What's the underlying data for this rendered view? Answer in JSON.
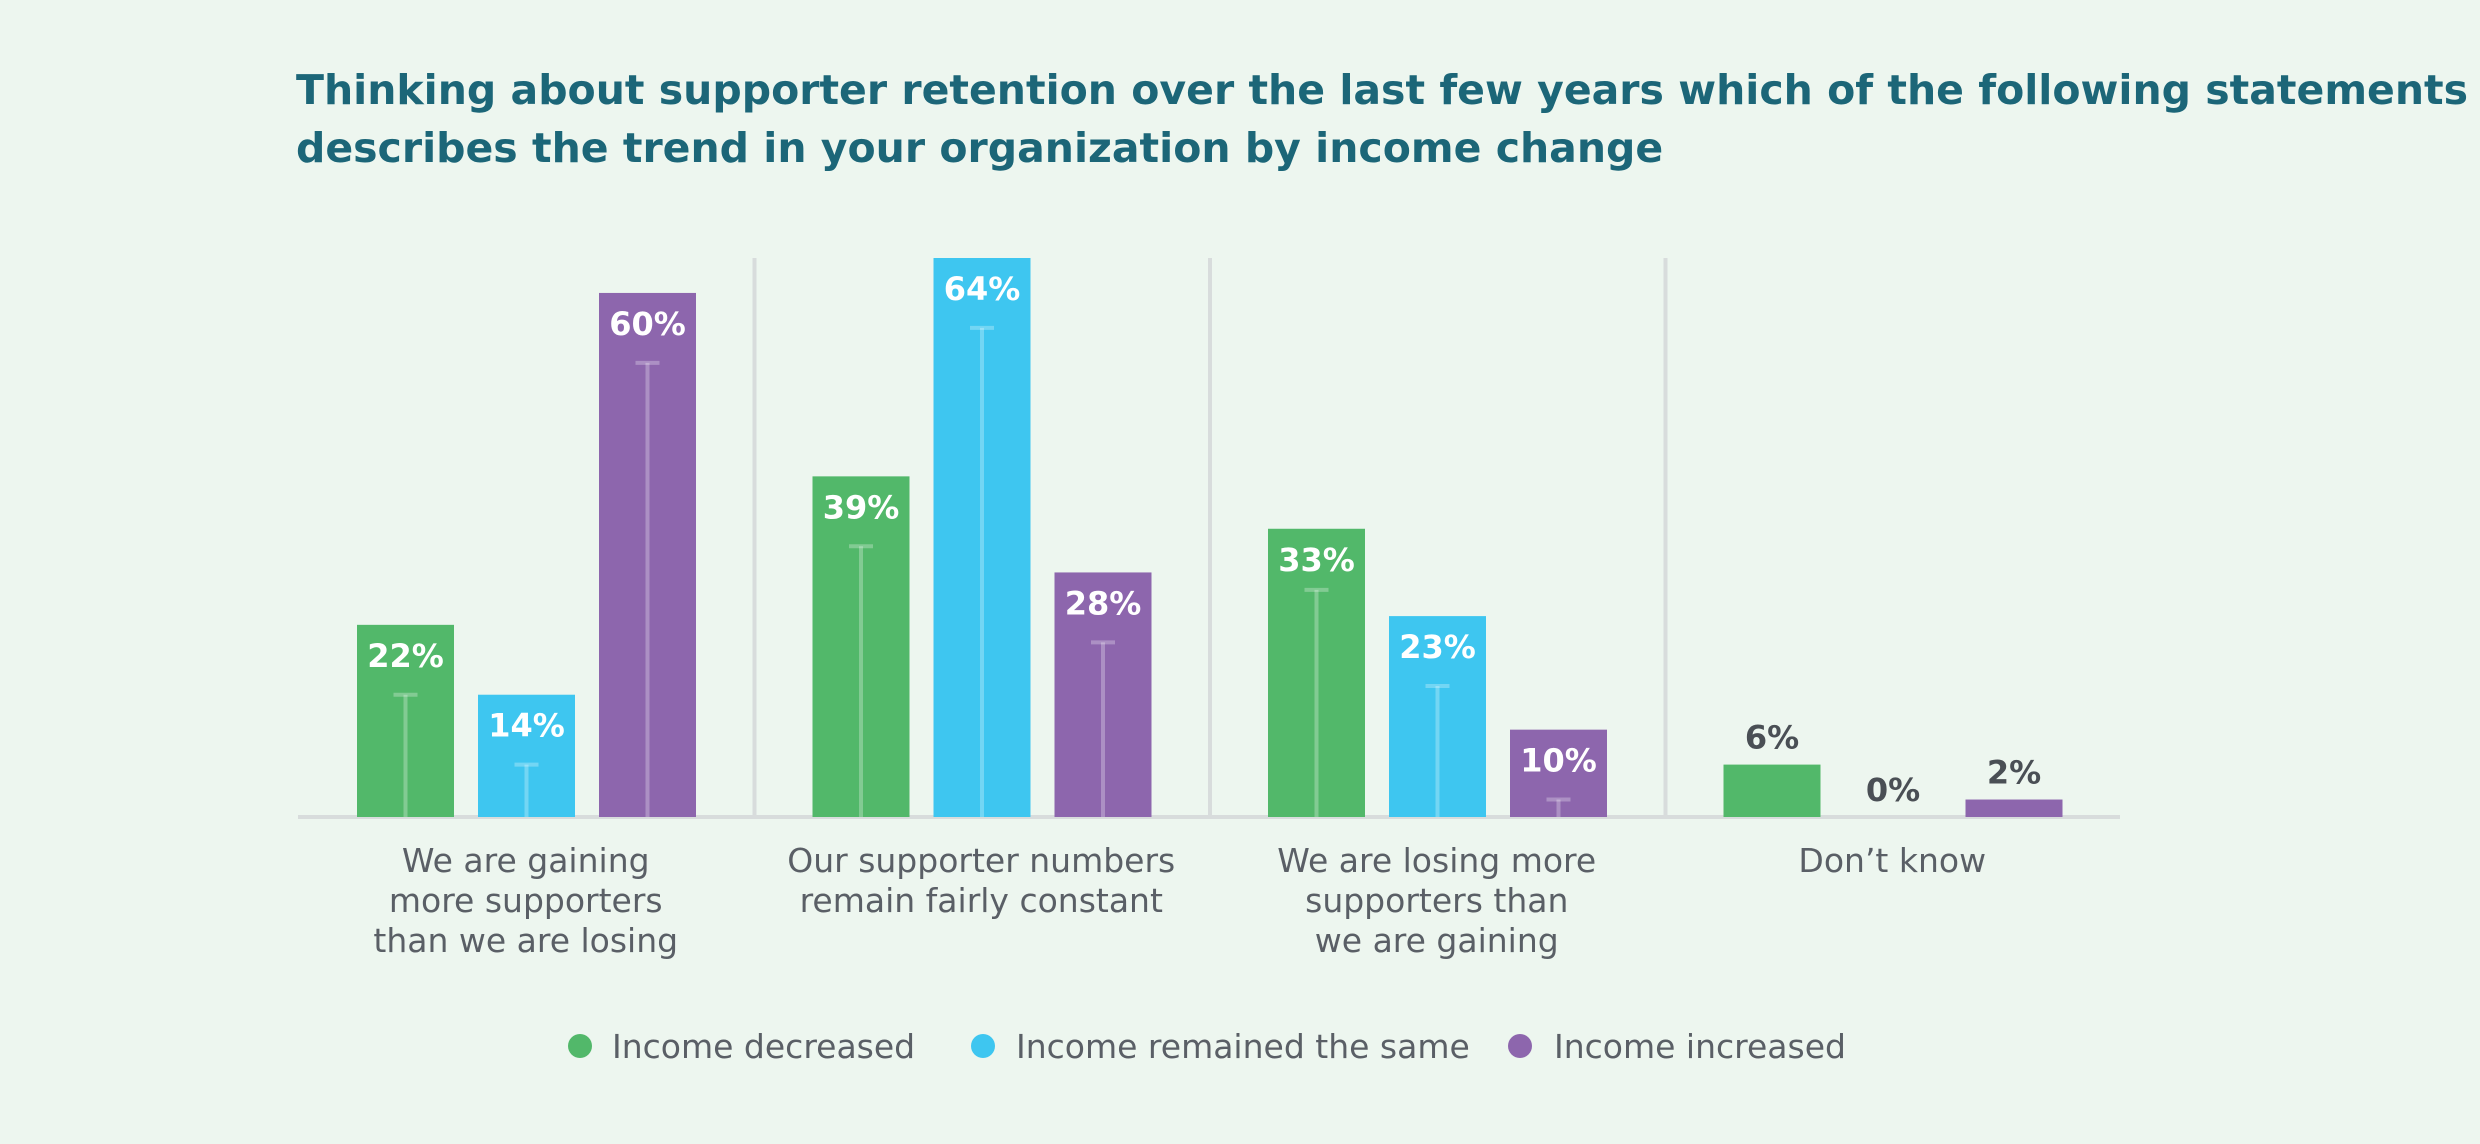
{
  "chart_data": {
    "type": "bar",
    "title": "Thinking about supporter retention over the last few years which of the following statements best describes the trend in your organization by income change",
    "title_lines": [
      "Thinking about supporter retention over the last few years which of the following statements best",
      "describes the trend in your organization by income change"
    ],
    "categories": [
      "We are gaining more supporters than we are losing",
      "Our supporter numbers remain fairly constant",
      "We are losing more supporters than we are gaining",
      "Don’t know"
    ],
    "category_lines": [
      [
        "We are gaining",
        "more supporters",
        "than we are losing"
      ],
      [
        "Our supporter numbers",
        "remain fairly constant"
      ],
      [
        "We are losing more",
        "supporters than",
        "we are gaining"
      ],
      [
        "Don’t know"
      ]
    ],
    "series": [
      {
        "name": "Income decreased",
        "color": "#52b86a",
        "values": [
          22,
          39,
          33,
          6
        ],
        "labels": [
          "22%",
          "39%",
          "33%",
          "6%"
        ],
        "error_upper": [
          14,
          31,
          26,
          null
        ]
      },
      {
        "name": "Income remained the same",
        "color": "#3ec6f0",
        "values": [
          14,
          64,
          23,
          0
        ],
        "labels": [
          "14%",
          "64%",
          "23%",
          "0%"
        ],
        "error_upper": [
          6,
          56,
          15,
          null
        ]
      },
      {
        "name": "Income increased",
        "color": "#8d66ad",
        "values": [
          60,
          28,
          10,
          2
        ],
        "labels": [
          "60%",
          "28%",
          "10%",
          "2%"
        ],
        "error_upper": [
          52,
          20,
          2,
          null
        ]
      }
    ],
    "ylim": [
      0,
      64
    ],
    "xlabel": "",
    "ylabel": "",
    "grid": false,
    "legend_position": "bottom-center"
  }
}
